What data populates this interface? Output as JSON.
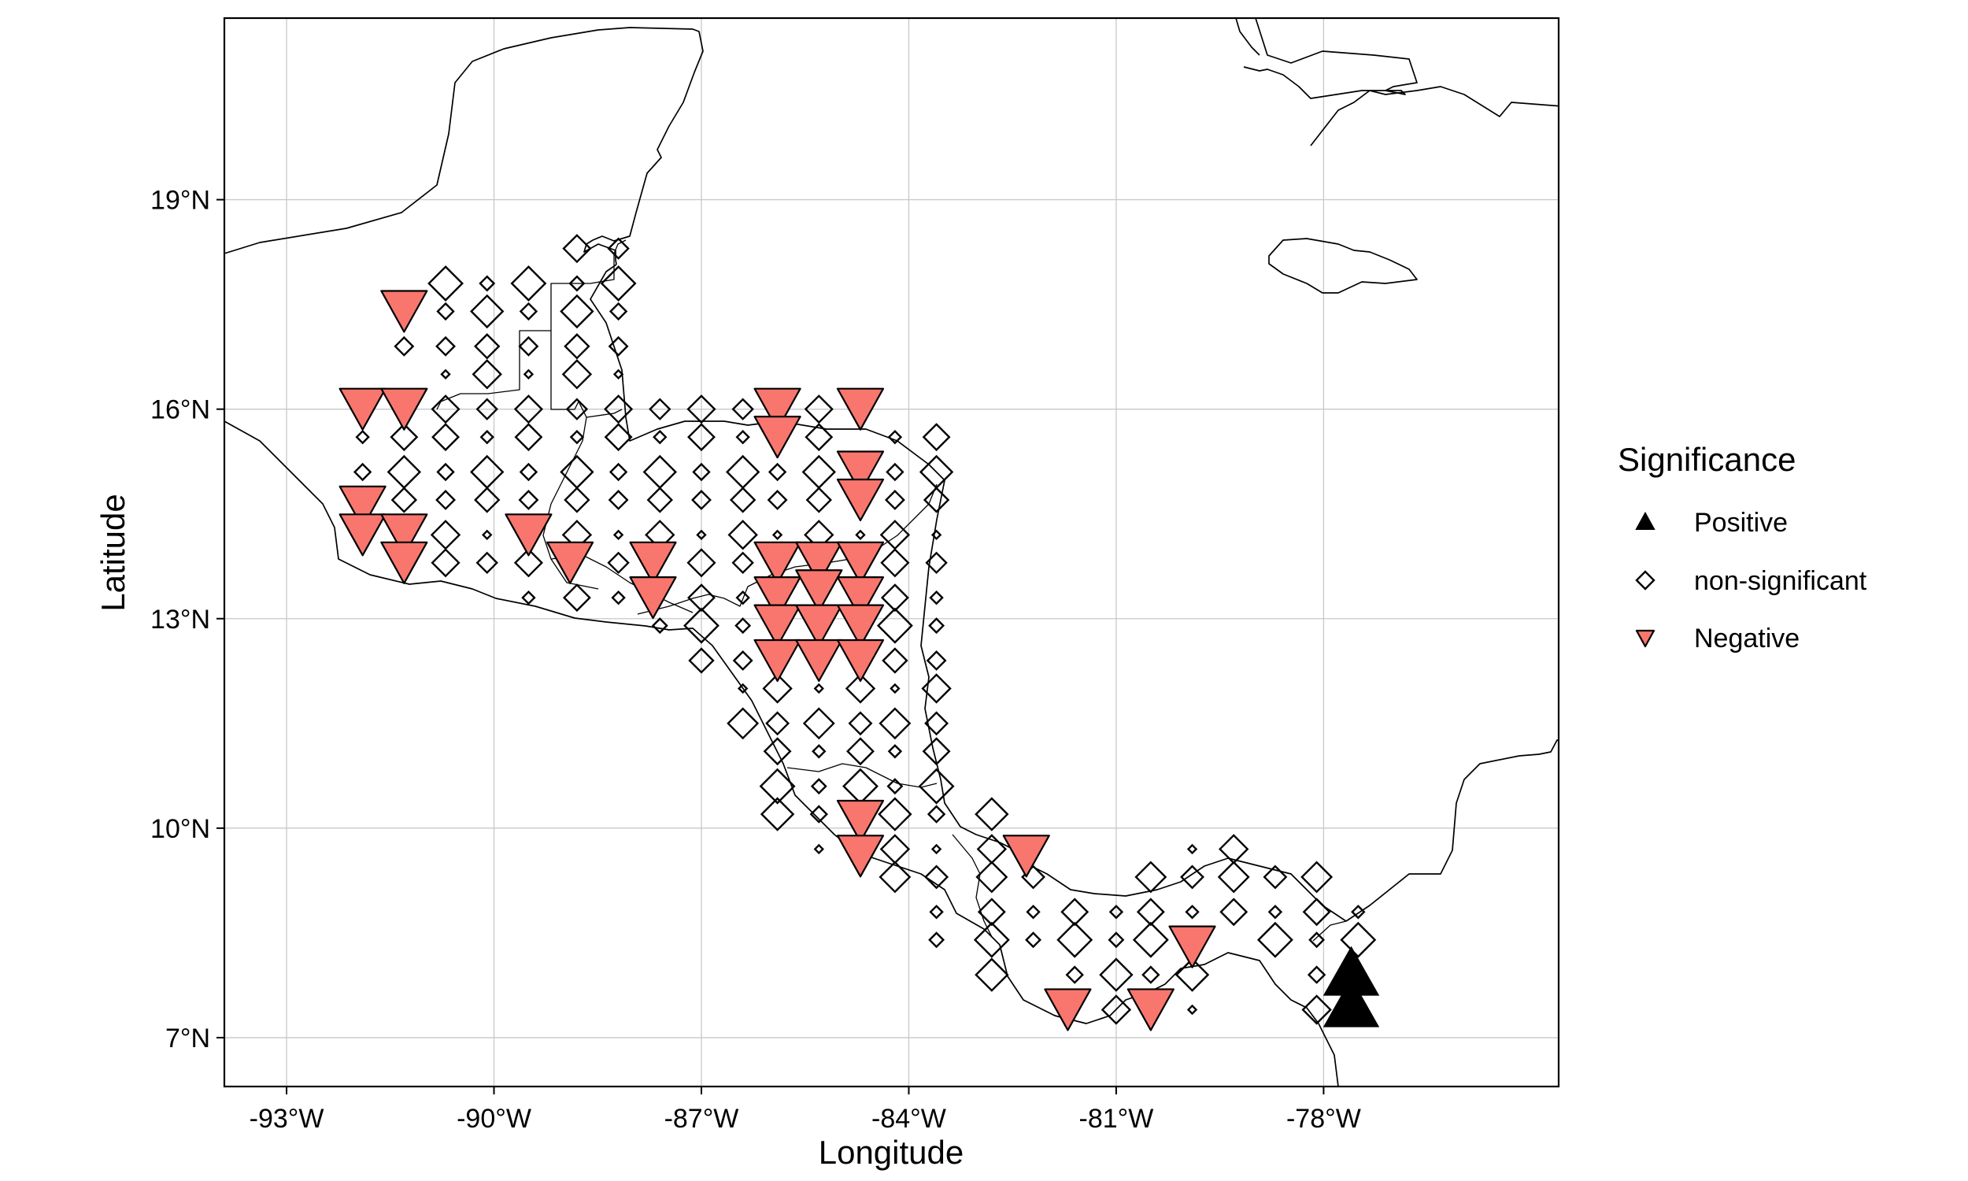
{
  "axes": {
    "x_title": "Longitude",
    "y_title": "Latitude",
    "x_ticks": [
      {
        "value": -93,
        "label": "-93°W"
      },
      {
        "value": -90,
        "label": "-90°W"
      },
      {
        "value": -87,
        "label": "-87°W"
      },
      {
        "value": -84,
        "label": "-84°W"
      },
      {
        "value": -81,
        "label": "-81°W"
      },
      {
        "value": -78,
        "label": "-78°W"
      }
    ],
    "y_ticks": [
      {
        "value": 7,
        "label": "7°N"
      },
      {
        "value": 10,
        "label": "10°N"
      },
      {
        "value": 13,
        "label": "13°N"
      },
      {
        "value": 16,
        "label": "16°N"
      },
      {
        "value": 19,
        "label": "19°N"
      }
    ]
  },
  "legend": {
    "title": "Significance",
    "items": [
      {
        "key": "positive",
        "label": "Positive",
        "shape": "triangle-up",
        "color": "#000000"
      },
      {
        "key": "ns",
        "label": "non-significant",
        "shape": "diamond-open",
        "color": "#000000"
      },
      {
        "key": "negative",
        "label": "Negative",
        "shape": "triangle-down",
        "color": "#F8766D"
      }
    ]
  },
  "chart_data": {
    "type": "scatter",
    "xlabel": "Longitude",
    "ylabel": "Latitude",
    "xlim": [
      -93.9,
      -74.6
    ],
    "ylim": [
      6.3,
      21.6
    ],
    "grid": true,
    "legend_position": "right",
    "series": [
      {
        "name": "Positive",
        "color": "#000000",
        "points": [
          [
            -77.6,
            7.95
          ],
          [
            -77.6,
            7.5
          ]
        ]
      },
      {
        "name": "Negative",
        "color": "#F8766D",
        "points": [
          [
            -91.3,
            17.4
          ],
          [
            -91.9,
            16.0
          ],
          [
            -91.3,
            16.0
          ],
          [
            -91.9,
            14.6
          ],
          [
            -91.9,
            14.2
          ],
          [
            -91.3,
            14.2
          ],
          [
            -91.3,
            13.8
          ],
          [
            -89.5,
            14.2
          ],
          [
            -88.9,
            13.8
          ],
          [
            -87.7,
            13.8
          ],
          [
            -87.7,
            13.3
          ],
          [
            -85.9,
            16.0
          ],
          [
            -85.9,
            15.6
          ],
          [
            -84.7,
            16.0
          ],
          [
            -84.7,
            15.1
          ],
          [
            -84.7,
            14.7
          ],
          [
            -85.9,
            13.8
          ],
          [
            -85.3,
            13.8
          ],
          [
            -84.7,
            13.8
          ],
          [
            -85.9,
            13.3
          ],
          [
            -85.3,
            13.4
          ],
          [
            -84.7,
            13.3
          ],
          [
            -85.9,
            12.9
          ],
          [
            -85.3,
            12.9
          ],
          [
            -84.7,
            12.9
          ],
          [
            -85.9,
            12.4
          ],
          [
            -85.3,
            12.4
          ],
          [
            -84.7,
            12.4
          ],
          [
            -84.7,
            10.1
          ],
          [
            -84.7,
            9.6
          ],
          [
            -82.3,
            9.6
          ],
          [
            -79.9,
            8.3
          ],
          [
            -81.7,
            7.4
          ],
          [
            -80.5,
            7.4
          ]
        ]
      },
      {
        "name": "non-significant",
        "color": "#000000",
        "points": [
          [
            -88.8,
            18.3
          ],
          [
            -88.2,
            18.3
          ],
          [
            -90.7,
            17.8
          ],
          [
            -90.1,
            17.8
          ],
          [
            -89.5,
            17.8
          ],
          [
            -88.8,
            17.8
          ],
          [
            -88.2,
            17.8
          ],
          [
            -91.3,
            16.9
          ],
          [
            -90.7,
            17.4
          ],
          [
            -90.1,
            17.4
          ],
          [
            -89.5,
            17.4
          ],
          [
            -88.8,
            17.4
          ],
          [
            -88.2,
            17.4
          ],
          [
            -90.7,
            16.9
          ],
          [
            -90.1,
            16.9
          ],
          [
            -89.5,
            16.9
          ],
          [
            -88.8,
            16.9
          ],
          [
            -88.2,
            16.9
          ],
          [
            -90.7,
            16.5
          ],
          [
            -90.1,
            16.5
          ],
          [
            -89.5,
            16.5
          ],
          [
            -88.8,
            16.5
          ],
          [
            -88.2,
            16.5
          ],
          [
            -91.9,
            15.6
          ],
          [
            -91.3,
            15.6
          ],
          [
            -90.7,
            16.0
          ],
          [
            -90.1,
            16.0
          ],
          [
            -89.5,
            16.0
          ],
          [
            -88.8,
            16.0
          ],
          [
            -88.2,
            16.0
          ],
          [
            -87.6,
            16.0
          ],
          [
            -87.0,
            16.0
          ],
          [
            -86.4,
            16.0
          ],
          [
            -85.3,
            16.0
          ],
          [
            -90.7,
            15.6
          ],
          [
            -90.1,
            15.6
          ],
          [
            -89.5,
            15.6
          ],
          [
            -88.8,
            15.6
          ],
          [
            -88.2,
            15.6
          ],
          [
            -87.6,
            15.6
          ],
          [
            -87.0,
            15.6
          ],
          [
            -86.4,
            15.6
          ],
          [
            -85.3,
            15.6
          ],
          [
            -84.2,
            15.6
          ],
          [
            -83.6,
            15.6
          ],
          [
            -91.9,
            15.1
          ],
          [
            -91.3,
            15.1
          ],
          [
            -90.7,
            15.1
          ],
          [
            -90.1,
            15.1
          ],
          [
            -89.5,
            15.1
          ],
          [
            -88.8,
            15.1
          ],
          [
            -88.2,
            15.1
          ],
          [
            -87.6,
            15.1
          ],
          [
            -87.0,
            15.1
          ],
          [
            -86.4,
            15.1
          ],
          [
            -85.9,
            15.1
          ],
          [
            -85.3,
            15.1
          ],
          [
            -84.2,
            15.1
          ],
          [
            -83.6,
            15.1
          ],
          [
            -91.3,
            14.7
          ],
          [
            -90.7,
            14.7
          ],
          [
            -90.1,
            14.7
          ],
          [
            -89.5,
            14.7
          ],
          [
            -88.8,
            14.7
          ],
          [
            -88.2,
            14.7
          ],
          [
            -87.6,
            14.7
          ],
          [
            -87.0,
            14.7
          ],
          [
            -86.4,
            14.7
          ],
          [
            -85.9,
            14.7
          ],
          [
            -85.3,
            14.7
          ],
          [
            -84.2,
            14.7
          ],
          [
            -83.6,
            14.7
          ],
          [
            -90.7,
            14.2
          ],
          [
            -90.1,
            14.2
          ],
          [
            -88.8,
            14.2
          ],
          [
            -88.2,
            14.2
          ],
          [
            -87.6,
            14.2
          ],
          [
            -87.0,
            14.2
          ],
          [
            -86.4,
            14.2
          ],
          [
            -85.9,
            14.2
          ],
          [
            -85.3,
            14.2
          ],
          [
            -84.7,
            14.2
          ],
          [
            -84.2,
            14.2
          ],
          [
            -83.6,
            14.2
          ],
          [
            -90.7,
            13.8
          ],
          [
            -90.1,
            13.8
          ],
          [
            -89.5,
            13.8
          ],
          [
            -88.2,
            13.8
          ],
          [
            -87.0,
            13.8
          ],
          [
            -86.4,
            13.8
          ],
          [
            -84.2,
            13.8
          ],
          [
            -83.6,
            13.8
          ],
          [
            -89.5,
            13.3
          ],
          [
            -88.8,
            13.3
          ],
          [
            -88.2,
            13.3
          ],
          [
            -87.0,
            13.3
          ],
          [
            -86.4,
            13.3
          ],
          [
            -84.2,
            13.3
          ],
          [
            -83.6,
            13.3
          ],
          [
            -87.6,
            12.9
          ],
          [
            -87.0,
            12.9
          ],
          [
            -86.4,
            12.9
          ],
          [
            -84.2,
            12.9
          ],
          [
            -83.6,
            12.9
          ],
          [
            -87.0,
            12.4
          ],
          [
            -86.4,
            12.4
          ],
          [
            -84.2,
            12.4
          ],
          [
            -83.6,
            12.4
          ],
          [
            -86.4,
            12.0
          ],
          [
            -85.9,
            12.0
          ],
          [
            -85.3,
            12.0
          ],
          [
            -84.7,
            12.0
          ],
          [
            -84.2,
            12.0
          ],
          [
            -83.6,
            12.0
          ],
          [
            -86.4,
            11.5
          ],
          [
            -85.9,
            11.5
          ],
          [
            -85.3,
            11.5
          ],
          [
            -84.7,
            11.5
          ],
          [
            -84.2,
            11.5
          ],
          [
            -83.6,
            11.5
          ],
          [
            -85.9,
            11.1
          ],
          [
            -85.3,
            11.1
          ],
          [
            -84.7,
            11.1
          ],
          [
            -84.2,
            11.1
          ],
          [
            -83.6,
            11.1
          ],
          [
            -85.9,
            10.6
          ],
          [
            -85.3,
            10.6
          ],
          [
            -84.7,
            10.6
          ],
          [
            -84.2,
            10.6
          ],
          [
            -83.6,
            10.6
          ],
          [
            -85.9,
            10.2
          ],
          [
            -85.3,
            10.2
          ],
          [
            -84.2,
            10.2
          ],
          [
            -83.6,
            10.2
          ],
          [
            -82.8,
            10.2
          ],
          [
            -85.3,
            9.7
          ],
          [
            -84.2,
            9.7
          ],
          [
            -83.6,
            9.7
          ],
          [
            -82.8,
            9.7
          ],
          [
            -79.9,
            9.7
          ],
          [
            -79.3,
            9.7
          ],
          [
            -84.2,
            9.3
          ],
          [
            -83.6,
            9.3
          ],
          [
            -82.8,
            9.3
          ],
          [
            -82.2,
            9.3
          ],
          [
            -80.5,
            9.3
          ],
          [
            -79.9,
            9.3
          ],
          [
            -79.3,
            9.3
          ],
          [
            -78.7,
            9.3
          ],
          [
            -78.1,
            9.3
          ],
          [
            -83.6,
            8.8
          ],
          [
            -82.8,
            8.8
          ],
          [
            -82.2,
            8.8
          ],
          [
            -81.6,
            8.8
          ],
          [
            -81.0,
            8.8
          ],
          [
            -80.5,
            8.8
          ],
          [
            -79.9,
            8.8
          ],
          [
            -79.3,
            8.8
          ],
          [
            -78.7,
            8.8
          ],
          [
            -78.1,
            8.8
          ],
          [
            -77.5,
            8.8
          ],
          [
            -83.6,
            8.4
          ],
          [
            -82.8,
            8.4
          ],
          [
            -82.2,
            8.4
          ],
          [
            -81.6,
            8.4
          ],
          [
            -81.0,
            8.4
          ],
          [
            -80.5,
            8.4
          ],
          [
            -79.9,
            8.4
          ],
          [
            -78.7,
            8.4
          ],
          [
            -78.1,
            8.4
          ],
          [
            -77.5,
            8.4
          ],
          [
            -82.8,
            7.9
          ],
          [
            -81.6,
            7.9
          ],
          [
            -81.0,
            7.9
          ],
          [
            -80.5,
            7.9
          ],
          [
            -79.9,
            7.9
          ],
          [
            -78.1,
            7.9
          ],
          [
            -81.0,
            7.4
          ],
          [
            -79.9,
            7.4
          ],
          [
            -78.1,
            7.4
          ]
        ]
      }
    ]
  }
}
